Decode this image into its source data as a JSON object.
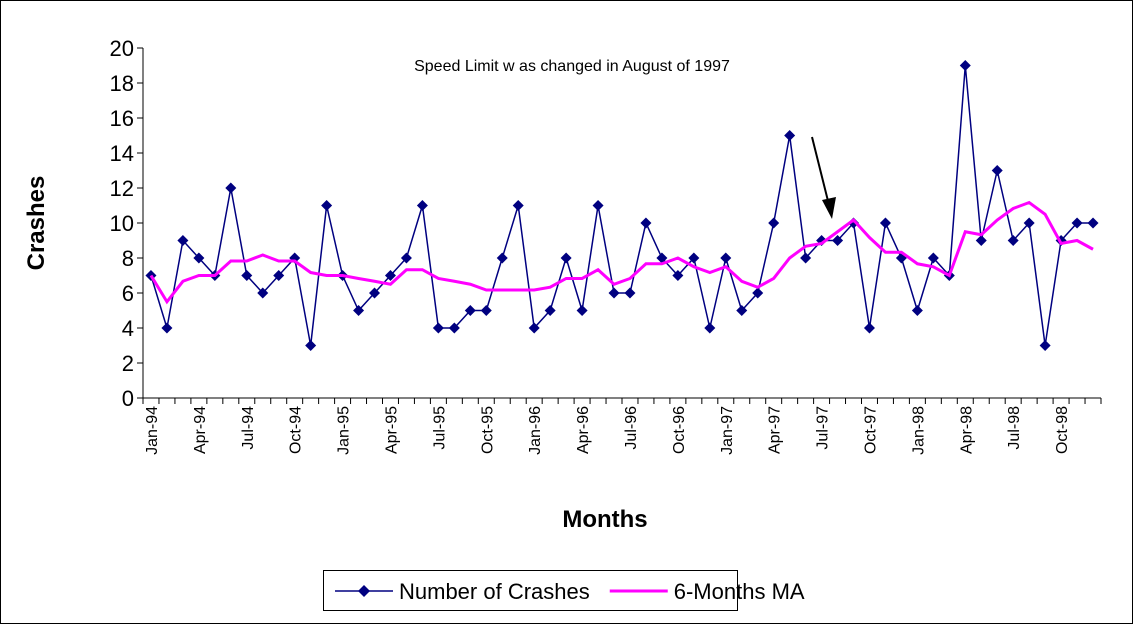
{
  "chart_data": {
    "type": "line",
    "annotation": "Speed Limit w as changed in August of 1997",
    "x_label": "Months",
    "y_label": "Crashes",
    "categories": [
      "Jan-94",
      null,
      null,
      "Apr-94",
      null,
      null,
      "Jul-94",
      null,
      null,
      "Oct-94",
      null,
      null,
      "Jan-95",
      null,
      null,
      "Apr-95",
      null,
      null,
      "Jul-95",
      null,
      null,
      "Oct-95",
      null,
      null,
      "Jan-96",
      null,
      null,
      "Apr-96",
      null,
      null,
      "Jul-96",
      null,
      null,
      "Oct-96",
      null,
      null,
      "Jan-97",
      null,
      null,
      "Apr-97",
      null,
      null,
      "Jul-97",
      null,
      null,
      "Oct-97",
      null,
      null,
      "Jan-98",
      null,
      null,
      "Apr-98",
      null,
      null,
      "Jul-98",
      null,
      null,
      "Oct-98",
      null,
      null
    ],
    "series": [
      {
        "name": "Number of Crashes",
        "color": "#000080",
        "marker": "diamond",
        "values": [
          7,
          4,
          9,
          8,
          7,
          12,
          7,
          6,
          7,
          8,
          3,
          11,
          7,
          5,
          6,
          7,
          8,
          11,
          4,
          4,
          5,
          5,
          8,
          11,
          4,
          5,
          8,
          5,
          11,
          6,
          6,
          10,
          8,
          7,
          8,
          4,
          8,
          5,
          6,
          10,
          15,
          8,
          9,
          9,
          10,
          4,
          10,
          8,
          5,
          8,
          7,
          19,
          9,
          13,
          9,
          10,
          3,
          9,
          10,
          10
        ]
      },
      {
        "name": "6-Months MA",
        "color": "#ff00ff",
        "marker": "none",
        "values": [
          7,
          5.5,
          6.67,
          7,
          7,
          7.83,
          7.83,
          8.17,
          7.83,
          7.83,
          7.17,
          7,
          7,
          6.83,
          6.67,
          6.5,
          7.33,
          7.33,
          6.83,
          6.67,
          6.5,
          6.17,
          6.17,
          6.17,
          6.17,
          6.33,
          6.83,
          6.83,
          7.33,
          6.5,
          6.83,
          7.67,
          7.67,
          8,
          7.5,
          7.17,
          7.5,
          6.67,
          6.33,
          6.83,
          8,
          8.67,
          8.83,
          9.5,
          10.17,
          9.17,
          8.33,
          8.33,
          7.67,
          7.5,
          7,
          9.5,
          9.33,
          10.17,
          10.83,
          11.17,
          10.5,
          8.83,
          9,
          8.5
        ]
      }
    ],
    "ylim": [
      0,
      20
    ],
    "yticks": [
      0,
      2,
      4,
      6,
      8,
      10,
      12,
      14,
      16,
      18,
      20
    ],
    "grid": false,
    "legend": "bottom"
  }
}
